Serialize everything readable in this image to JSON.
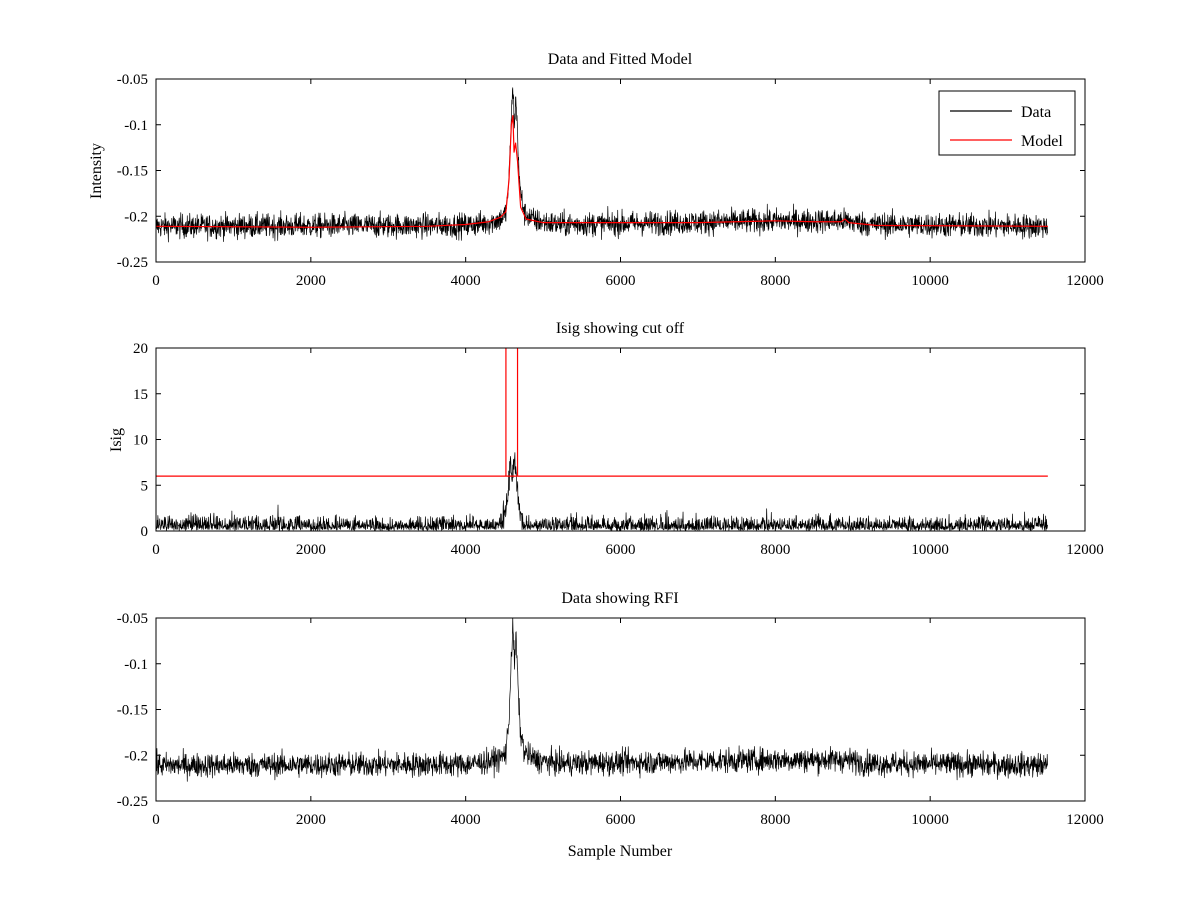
{
  "colors": {
    "data": "#000000",
    "model": "#ff0000",
    "background": "#ffffff",
    "axes": "#000000"
  },
  "chart_data": [
    {
      "type": "line",
      "title": "Data and Fitted Model",
      "xlabel": "",
      "ylabel": "Intensity",
      "xlim": [
        0,
        12000
      ],
      "ylim": [
        -0.25,
        -0.05
      ],
      "y_reversed": true,
      "xticks": [
        0,
        2000,
        4000,
        6000,
        8000,
        10000,
        12000
      ],
      "xtick_labels": [
        "0",
        "2000",
        "4000",
        "6000",
        "8000",
        "10000",
        "12000"
      ],
      "yticks": [
        -0.05,
        -0.1,
        -0.15,
        -0.2,
        -0.25
      ],
      "ytick_labels": [
        "-0.05",
        "-0.1",
        "-0.15",
        "-0.2",
        "-0.25"
      ],
      "legend": {
        "position": "top-right",
        "entries": [
          "Data",
          "Model"
        ]
      },
      "series": [
        {
          "name": "Data",
          "color": "#000000",
          "kind": "noise",
          "n_samples": 11520,
          "noise_halfwidth": 0.015,
          "baseline": [
            [
              0,
              -0.211
            ],
            [
              4000,
              -0.21
            ],
            [
              4300,
              -0.207
            ],
            [
              4450,
              -0.203
            ],
            [
              4520,
              -0.197
            ],
            [
              4560,
              -0.16
            ],
            [
              4590,
              -0.09
            ],
            [
              4610,
              -0.06
            ],
            [
              4630,
              -0.1
            ],
            [
              4650,
              -0.07
            ],
            [
              4670,
              -0.11
            ],
            [
              4700,
              -0.17
            ],
            [
              4760,
              -0.197
            ],
            [
              4900,
              -0.205
            ],
            [
              5200,
              -0.209
            ],
            [
              6000,
              -0.208
            ],
            [
              8000,
              -0.205
            ],
            [
              8900,
              -0.205
            ],
            [
              9200,
              -0.209
            ],
            [
              11520,
              -0.211
            ]
          ]
        },
        {
          "name": "Model",
          "color": "#ff0000",
          "kind": "line",
          "points": [
            [
              0,
              -0.211
            ],
            [
              2000,
              -0.212
            ],
            [
              3500,
              -0.211
            ],
            [
              4000,
              -0.209
            ],
            [
              4300,
              -0.206
            ],
            [
              4450,
              -0.201
            ],
            [
              4520,
              -0.195
            ],
            [
              4560,
              -0.16
            ],
            [
              4590,
              -0.1
            ],
            [
              4610,
              -0.09
            ],
            [
              4625,
              -0.13
            ],
            [
              4645,
              -0.12
            ],
            [
              4670,
              -0.14
            ],
            [
              4710,
              -0.19
            ],
            [
              4780,
              -0.203
            ],
            [
              5000,
              -0.207
            ],
            [
              6000,
              -0.207
            ],
            [
              7000,
              -0.207
            ],
            [
              8000,
              -0.205
            ],
            [
              8500,
              -0.206
            ],
            [
              8850,
              -0.206
            ],
            [
              8900,
              -0.203
            ],
            [
              8950,
              -0.207
            ],
            [
              9300,
              -0.21
            ],
            [
              11520,
              -0.211
            ]
          ]
        }
      ]
    },
    {
      "type": "line",
      "title": "Isig showing cut off",
      "xlabel": "",
      "ylabel": "Isig",
      "xlim": [
        0,
        12000
      ],
      "ylim": [
        0,
        20
      ],
      "y_reversed": false,
      "xticks": [
        0,
        2000,
        4000,
        6000,
        8000,
        10000,
        12000
      ],
      "xtick_labels": [
        "0",
        "2000",
        "4000",
        "6000",
        "8000",
        "10000",
        "12000"
      ],
      "yticks": [
        0,
        5,
        10,
        15,
        20
      ],
      "ytick_labels": [
        "0",
        "5",
        "10",
        "15",
        "20"
      ],
      "series": [
        {
          "name": "Isig",
          "color": "#000000",
          "kind": "abs_noise",
          "n_samples": 11520,
          "noise_halfwidth": 2.0,
          "baseline": [
            [
              0,
              0
            ],
            [
              4400,
              0
            ],
            [
              4480,
              1.0
            ],
            [
              4540,
              3.5
            ],
            [
              4580,
              7.0
            ],
            [
              4600,
              5.5
            ],
            [
              4630,
              7.5
            ],
            [
              4660,
              5.0
            ],
            [
              4700,
              2.0
            ],
            [
              4750,
              0.3
            ],
            [
              4800,
              0
            ],
            [
              11520,
              0
            ]
          ]
        },
        {
          "name": "Cut off",
          "color": "#ff0000",
          "kind": "line",
          "points": [
            [
              0,
              6
            ],
            [
              4520,
              6
            ],
            [
              4520,
              20
            ],
            [
              4520,
              6
            ],
            [
              4670,
              6
            ],
            [
              4670,
              20
            ],
            [
              4670,
              6
            ],
            [
              11520,
              6
            ]
          ]
        }
      ]
    },
    {
      "type": "line",
      "title": "Data showing RFI",
      "xlabel": "Sample Number",
      "ylabel": "",
      "xlim": [
        0,
        12000
      ],
      "ylim": [
        -0.25,
        -0.05
      ],
      "y_reversed": true,
      "xticks": [
        0,
        2000,
        4000,
        6000,
        8000,
        10000,
        12000
      ],
      "xtick_labels": [
        "0",
        "2000",
        "4000",
        "6000",
        "8000",
        "10000",
        "12000"
      ],
      "yticks": [
        -0.05,
        -0.1,
        -0.15,
        -0.2,
        -0.25
      ],
      "ytick_labels": [
        "-0.05",
        "-0.1",
        "-0.15",
        "-0.2",
        "-0.25"
      ],
      "series": [
        {
          "name": "Data",
          "color": "#000000",
          "kind": "noise",
          "n_samples": 11520,
          "noise_halfwidth": 0.015,
          "baseline": [
            [
              0,
              -0.211
            ],
            [
              4000,
              -0.21
            ],
            [
              4300,
              -0.207
            ],
            [
              4450,
              -0.203
            ],
            [
              4520,
              -0.197
            ],
            [
              4560,
              -0.16
            ],
            [
              4590,
              -0.09
            ],
            [
              4610,
              -0.06
            ],
            [
              4630,
              -0.1
            ],
            [
              4650,
              -0.07
            ],
            [
              4670,
              -0.11
            ],
            [
              4700,
              -0.17
            ],
            [
              4760,
              -0.197
            ],
            [
              4900,
              -0.205
            ],
            [
              5200,
              -0.209
            ],
            [
              6000,
              -0.208
            ],
            [
              8000,
              -0.205
            ],
            [
              8900,
              -0.205
            ],
            [
              9200,
              -0.209
            ],
            [
              11520,
              -0.211
            ]
          ]
        }
      ]
    }
  ]
}
